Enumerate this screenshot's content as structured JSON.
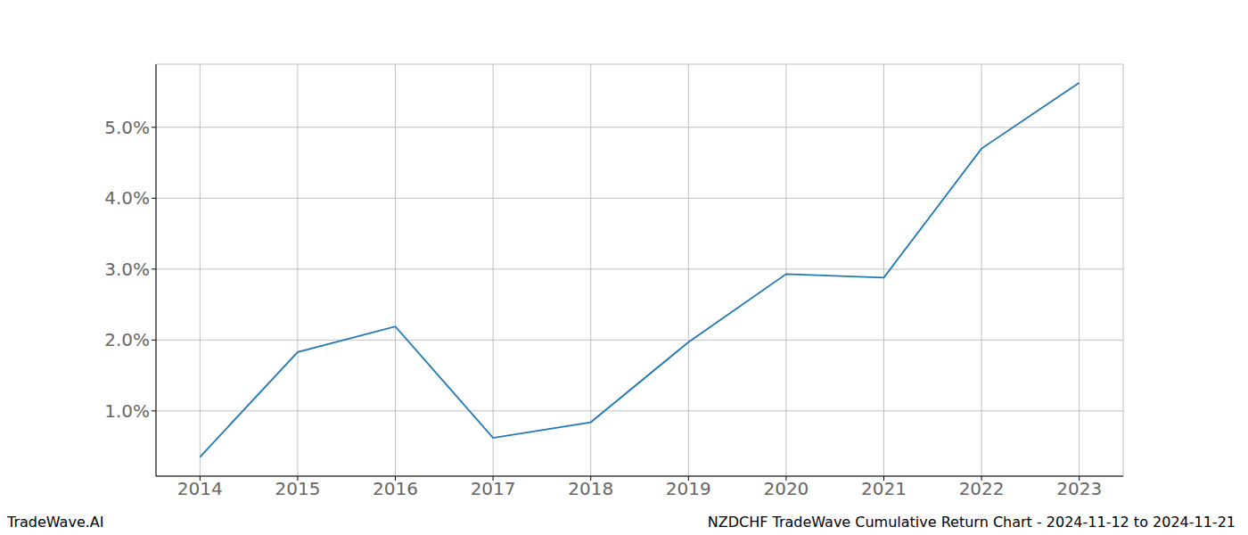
{
  "chart_data": {
    "type": "line",
    "title": "NZDCHF TradeWave Cumulative Return Chart - 2024-11-12 to 2024-11-21",
    "annotations": [
      "TradeWave.AI"
    ],
    "x": [
      2014,
      2015,
      2016,
      2017,
      2018,
      2019,
      2020,
      2021,
      2022,
      2023
    ],
    "values": [
      0.35,
      1.83,
      2.19,
      0.62,
      0.84,
      1.97,
      2.93,
      2.88,
      4.7,
      5.63
    ],
    "color": "#1f77b4",
    "xlim": [
      2013.55,
      2023.45
    ],
    "xticks": [
      2014,
      2015,
      2016,
      2017,
      2018,
      2019,
      2020,
      2021,
      2022,
      2023
    ],
    "ylim": [
      0.08,
      5.89
    ],
    "yticks": [
      {
        "value": 1,
        "label": "1.0%"
      },
      {
        "value": 2,
        "label": "2.0%"
      },
      {
        "value": 3,
        "label": "3.0%"
      },
      {
        "value": 4,
        "label": "4.0%"
      },
      {
        "value": 5,
        "label": "5.0%"
      }
    ],
    "grid": true
  }
}
